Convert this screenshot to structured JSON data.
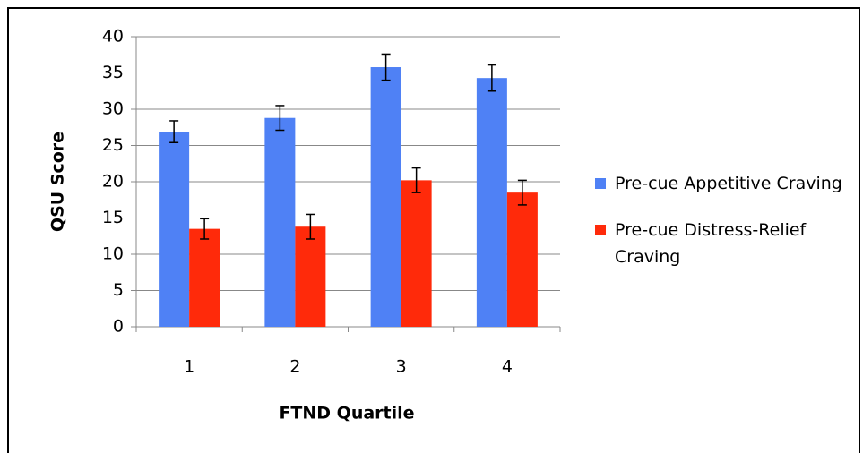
{
  "chart_data": {
    "type": "bar",
    "categories": [
      "1",
      "2",
      "3",
      "4"
    ],
    "series": [
      {
        "name": "Pre-cue Appetitive Craving",
        "color": "#4f81f5",
        "values": [
          26.9,
          28.8,
          35.8,
          34.3
        ],
        "errors": [
          1.5,
          1.7,
          1.8,
          1.8
        ]
      },
      {
        "name": "Pre-cue Distress-Relief Craving",
        "color": "#ff2a0a",
        "values": [
          13.5,
          13.8,
          20.2,
          18.5
        ],
        "errors": [
          1.4,
          1.7,
          1.7,
          1.7
        ]
      }
    ],
    "x_label": "FTND Quartile",
    "y_label": "QSU Score",
    "ylim": [
      0,
      40
    ],
    "yticks": [
      0,
      5,
      10,
      15,
      20,
      25,
      30,
      35,
      40
    ],
    "grid": true,
    "legend": "right"
  }
}
